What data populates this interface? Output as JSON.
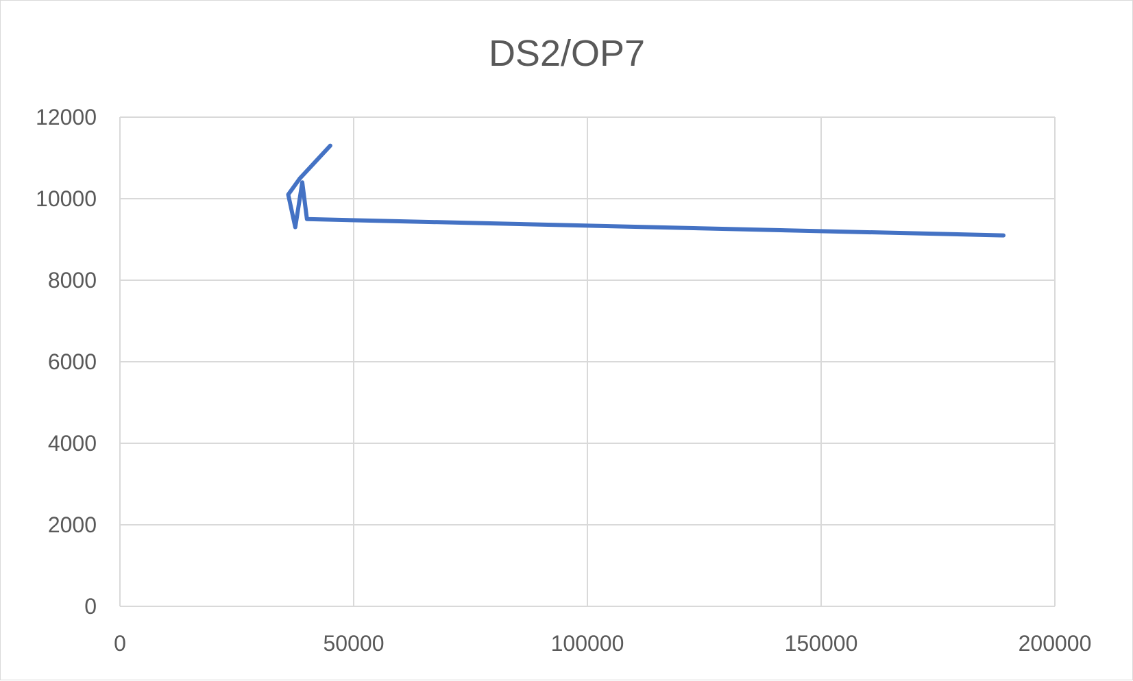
{
  "chart_data": {
    "type": "line",
    "title": "DS2/OP7",
    "xlabel": "",
    "ylabel": "",
    "xlim": [
      0,
      200000
    ],
    "ylim": [
      0,
      12000
    ],
    "x_ticks": [
      0,
      50000,
      100000,
      150000,
      200000
    ],
    "y_ticks": [
      0,
      2000,
      4000,
      6000,
      8000,
      10000,
      12000
    ],
    "x_tick_labels": [
      "0",
      "50000",
      "100000",
      "150000",
      "200000"
    ],
    "y_tick_labels": [
      "0",
      "2000",
      "4000",
      "6000",
      "8000",
      "10000",
      "12000"
    ],
    "grid": true,
    "legend": "none",
    "series": [
      {
        "color": "#4472c4",
        "x": [
          45000,
          38500,
          36000,
          37500,
          39000,
          40000,
          189000
        ],
        "y": [
          11300,
          10500,
          10100,
          9300,
          10400,
          9500,
          9100
        ]
      }
    ]
  }
}
